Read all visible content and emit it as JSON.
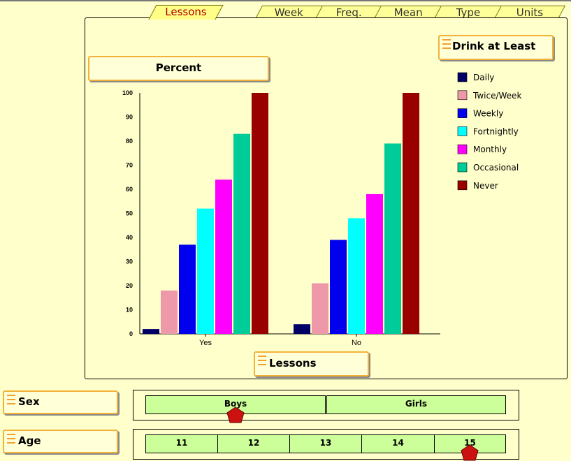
{
  "tabs": [
    {
      "label": "Lessons",
      "active": true
    },
    {
      "label": "Week"
    },
    {
      "label": "Freq."
    },
    {
      "label": "Mean"
    },
    {
      "label": "Type"
    },
    {
      "label": "Units"
    }
  ],
  "y_axis_button": "Percent",
  "x_axis_button": "Lessons",
  "legend_button": "Drink at Least",
  "chart_data": {
    "type": "bar",
    "categories": [
      "Yes",
      "No"
    ],
    "ylim": [
      0,
      100
    ],
    "yticks": [
      0,
      10,
      20,
      30,
      40,
      50,
      60,
      70,
      80,
      90,
      100
    ],
    "series": [
      {
        "name": "Daily",
        "color": "#000066",
        "values": [
          2,
          4
        ]
      },
      {
        "name": "Twice/Week",
        "color": "#ee99aa",
        "values": [
          18,
          21
        ]
      },
      {
        "name": "Weekly",
        "color": "#0000ee",
        "values": [
          37,
          39
        ]
      },
      {
        "name": "Fortnightly",
        "color": "#00ffff",
        "values": [
          52,
          48
        ]
      },
      {
        "name": "Monthly",
        "color": "#ff00ff",
        "values": [
          64,
          58
        ]
      },
      {
        "name": "Occasional",
        "color": "#00cc99",
        "values": [
          83,
          79
        ]
      },
      {
        "name": "Never",
        "color": "#990000",
        "values": [
          100,
          100
        ]
      }
    ],
    "legend_position": "right"
  },
  "sex": {
    "label": "Sex",
    "options": [
      "Boys",
      "Girls"
    ],
    "selected": "Boys"
  },
  "age": {
    "label": "Age",
    "options": [
      "11",
      "12",
      "13",
      "14",
      "15"
    ],
    "selected": "15"
  },
  "colors": {
    "pointer": "#cc1111",
    "button_border": "#f2b23a",
    "slider_fill": "#ccff99"
  }
}
